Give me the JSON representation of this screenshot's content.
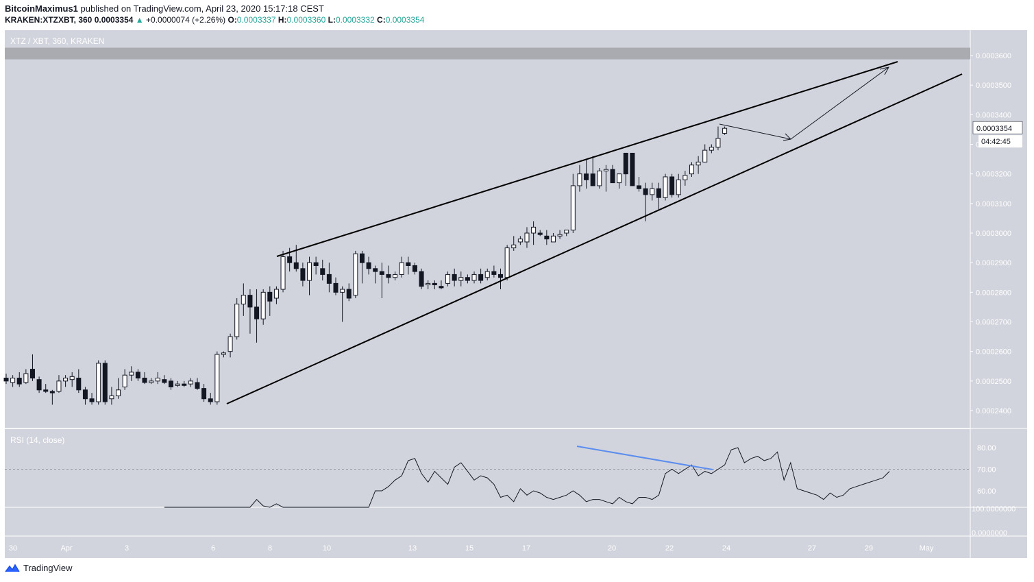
{
  "header": {
    "author": "BitcoinMaximus1",
    "published_text": "published on TradingView.com, April 23, 2020 15:17:18 CEST",
    "symbol": "KRAKEN:XTZXBT, 360",
    "last": "0.0003354",
    "change_arrow": "▲",
    "change": "+0.0000074 (+2.26%)",
    "o_label": "O:",
    "o": "0.0003337",
    "h_label": "H:",
    "h": "0.0003360",
    "l_label": "L:",
    "l": "0.0003332",
    "c_label": "C:",
    "c": "0.0003354"
  },
  "footer": {
    "brand": "TradingView",
    "logo_icon": "tradingview-logo-icon"
  },
  "colors": {
    "background": "#d1d4dc",
    "candle_up": "#ffffff",
    "candle_down": "#131722",
    "resistance_zone": "#a9abb0",
    "divergence": "#5b8def",
    "rsi_line": "#131722"
  },
  "chart_data": {
    "type": "candlestick",
    "title": "XTZ / XBT, 360, KRAKEN",
    "price_axis_ticks": [
      "0.0003600",
      "0.0003500",
      "0.0003400",
      "0.0003300",
      "0.0003200",
      "0.0003100",
      "0.0003000",
      "0.0002900",
      "0.0002800",
      "0.0002700",
      "0.0002600",
      "0.0002500",
      "0.0002400"
    ],
    "price_ticks_values": [
      0.00036,
      0.00035,
      0.00034,
      0.00033,
      0.00032,
      0.00031,
      0.0003,
      0.00029,
      0.00028,
      0.00027,
      0.00026,
      0.00025,
      0.00024
    ],
    "last_price_label": "0.0003354",
    "countdown_label": "04:42:45",
    "x_axis_labels": [
      "30",
      "Apr",
      "3",
      "6",
      "8",
      "10",
      "13",
      "15",
      "17",
      "20",
      "22",
      "24",
      "27",
      "29",
      "May"
    ],
    "candles_ohlc": [
      [
        0.000251,
        0.0002525,
        0.000249,
        0.00025
      ],
      [
        0.0002495,
        0.000252,
        0.000248,
        0.000251
      ],
      [
        0.000251,
        0.000253,
        0.000248,
        0.000249
      ],
      [
        0.0002495,
        0.000254,
        0.000249,
        0.0002525
      ],
      [
        0.000254,
        0.000259,
        0.00025,
        0.000251
      ],
      [
        0.0002505,
        0.0002515,
        0.000246,
        0.000247
      ],
      [
        0.000247,
        0.000249,
        0.000246,
        0.0002465
      ],
      [
        0.0002465,
        0.000247,
        0.000242,
        0.000246
      ],
      [
        0.0002465,
        0.000252,
        0.000246,
        0.00025
      ],
      [
        0.00025,
        0.000252,
        0.000248,
        0.000251
      ],
      [
        0.0002505,
        0.000253,
        0.000248,
        0.0002515
      ],
      [
        0.000251,
        0.000254,
        0.000246,
        0.000247
      ],
      [
        0.000247,
        0.000248,
        0.000242,
        0.000244
      ],
      [
        0.000244,
        0.000246,
        0.000242,
        0.000243
      ],
      [
        0.000243,
        0.000257,
        0.000242,
        0.000256
      ],
      [
        0.000256,
        0.000257,
        0.000242,
        0.000243
      ],
      [
        0.000244,
        0.000248,
        0.000242,
        0.000245
      ],
      [
        0.000245,
        0.000251,
        0.000244,
        0.000247
      ],
      [
        0.000248,
        0.000254,
        0.000247,
        0.000252
      ],
      [
        0.000252,
        0.000255,
        0.00025,
        0.000253
      ],
      [
        0.000253,
        0.000254,
        0.00025,
        0.000251
      ],
      [
        0.000251,
        0.000253,
        0.000249,
        0.0002495
      ],
      [
        0.0002495,
        0.000251,
        0.000249,
        0.00025
      ],
      [
        0.00025,
        0.000253,
        0.000249,
        0.000251
      ],
      [
        0.0002505,
        0.000252,
        0.000249,
        0.0002495
      ],
      [
        0.00025,
        0.000251,
        0.000247,
        0.000248
      ],
      [
        0.0002485,
        0.00025,
        0.000248,
        0.000249
      ],
      [
        0.000249,
        0.00025,
        0.000248,
        0.0002485
      ],
      [
        0.000249,
        0.000251,
        0.000248,
        0.00025
      ],
      [
        0.0002495,
        0.000251,
        0.000247,
        0.0002475
      ],
      [
        0.0002475,
        0.000249,
        0.000243,
        0.000244
      ],
      [
        0.000244,
        0.000246,
        0.000242,
        0.000243
      ],
      [
        0.000243,
        0.00026,
        0.000242,
        0.000259
      ],
      [
        0.000259,
        0.00026,
        0.000258,
        0.0002595
      ],
      [
        0.00026,
        0.000266,
        0.000258,
        0.000265
      ],
      [
        0.000265,
        0.000278,
        0.000264,
        0.000276
      ],
      [
        0.000276,
        0.000283,
        0.000272,
        0.000279
      ],
      [
        0.000279,
        0.000281,
        0.000266,
        0.000275
      ],
      [
        0.000275,
        0.000281,
        0.000263,
        0.000271
      ],
      [
        0.000271,
        0.000281,
        0.000269,
        0.00028
      ],
      [
        0.00028,
        0.000282,
        0.000272,
        0.000277
      ],
      [
        0.000278,
        0.000282,
        0.000276,
        0.000281
      ],
      [
        0.000281,
        0.000294,
        0.00028,
        0.000292
      ],
      [
        0.000292,
        0.000295,
        0.000287,
        0.00029
      ],
      [
        0.00029,
        0.000296,
        0.000287,
        0.000288
      ],
      [
        0.000288,
        0.00029,
        0.000282,
        0.000284
      ],
      [
        0.000284,
        0.000292,
        0.000279,
        0.00029
      ],
      [
        0.00029,
        0.000292,
        0.000286,
        0.000289
      ],
      [
        0.000288,
        0.000291,
        0.000284,
        0.000286
      ],
      [
        0.000286,
        0.00029,
        0.00028,
        0.000283
      ],
      [
        0.000283,
        0.000285,
        0.000279,
        0.00028
      ],
      [
        0.00028,
        0.000282,
        0.00027,
        0.000281
      ],
      [
        0.000281,
        0.000283,
        0.000277,
        0.000278
      ],
      [
        0.000279,
        0.000294,
        0.000278,
        0.000293
      ],
      [
        0.000293,
        0.000294,
        0.000283,
        0.00029
      ],
      [
        0.00029,
        0.000292,
        0.000286,
        0.000288
      ],
      [
        0.000288,
        0.000289,
        0.000283,
        0.000287
      ],
      [
        0.000287,
        0.00029,
        0.000278,
        0.000286
      ],
      [
        0.000286,
        0.000289,
        0.000283,
        0.000285
      ],
      [
        0.000285,
        0.000287,
        0.000284,
        0.000286
      ],
      [
        0.000286,
        0.000292,
        0.000285,
        0.00029
      ],
      [
        0.00029,
        0.000292,
        0.000286,
        0.000289
      ],
      [
        0.000289,
        0.00029,
        0.000286,
        0.000287
      ],
      [
        0.000287,
        0.000288,
        0.000281,
        0.000282
      ],
      [
        0.0002825,
        0.000284,
        0.000281,
        0.000283
      ],
      [
        0.000283,
        0.000284,
        0.000281,
        0.0002825
      ],
      [
        0.000282,
        0.000284,
        0.000281,
        0.0002815
      ],
      [
        0.000283,
        0.000287,
        0.000282,
        0.000286
      ],
      [
        0.000286,
        0.000288,
        0.000282,
        0.000284
      ],
      [
        0.000284,
        0.000287,
        0.000282,
        0.000285
      ],
      [
        0.000285,
        0.000286,
        0.000283,
        0.000284
      ],
      [
        0.000284,
        0.000287,
        0.000283,
        0.000286
      ],
      [
        0.000286,
        0.000288,
        0.000283,
        0.000284
      ],
      [
        0.000285,
        0.000288,
        0.000284,
        0.000287
      ],
      [
        0.000287,
        0.000289,
        0.000285,
        0.000286
      ],
      [
        0.000286,
        0.000288,
        0.000281,
        0.000285
      ],
      [
        0.000285,
        0.000296,
        0.000284,
        0.000295
      ],
      [
        0.000295,
        0.000299,
        0.000294,
        0.000296
      ],
      [
        0.000297,
        0.000299,
        0.000296,
        0.000298
      ],
      [
        0.000297,
        0.000302,
        0.000295,
        0.0003
      ],
      [
        0.0003,
        0.000304,
        0.000296,
        0.000302
      ],
      [
        0.0003,
        0.000301,
        0.000299,
        0.0002995
      ],
      [
        0.000299,
        0.000301,
        0.000296,
        0.000298
      ],
      [
        0.000297,
        0.0003,
        0.000297,
        0.000299
      ],
      [
        0.000299,
        0.000301,
        0.000298,
        0.0002995
      ],
      [
        0.0003,
        0.000301,
        0.000299,
        0.000301
      ],
      [
        0.000301,
        0.00032,
        0.0003,
        0.000316
      ],
      [
        0.000316,
        0.000323,
        0.000314,
        0.00032
      ],
      [
        0.00032,
        0.000325,
        0.000315,
        0.000318
      ],
      [
        0.00032,
        0.000326,
        0.000317,
        0.000316
      ],
      [
        0.000316,
        0.000322,
        0.000315,
        0.000321
      ],
      [
        0.000321,
        0.000323,
        0.000314,
        0.0003215
      ],
      [
        0.0003215,
        0.000323,
        0.000318,
        0.000317
      ],
      [
        0.000317,
        0.00032,
        0.000315,
        0.00032
      ],
      [
        0.000327,
        0.000327,
        0.000316,
        0.00032
      ],
      [
        0.000327,
        0.000327,
        0.000316,
        0.000316
      ],
      [
        0.000316,
        0.000319,
        0.000314,
        0.000315
      ],
      [
        0.000315,
        0.000317,
        0.000304,
        0.000313
      ],
      [
        0.000313,
        0.000317,
        0.000311,
        0.000315
      ],
      [
        0.000315,
        0.000317,
        0.000308,
        0.000312
      ],
      [
        0.000312,
        0.00032,
        0.000311,
        0.000319
      ],
      [
        0.000319,
        0.00032,
        0.000312,
        0.000313
      ],
      [
        0.000313,
        0.00032,
        0.000312,
        0.000318
      ],
      [
        0.000318,
        0.000321,
        0.000316,
        0.0003195
      ],
      [
        0.00032,
        0.000324,
        0.000319,
        0.000323
      ],
      [
        0.000323,
        0.000326,
        0.00032,
        0.000324
      ],
      [
        0.000324,
        0.00033,
        0.000324,
        0.000328
      ],
      [
        0.000328,
        0.00033,
        0.000327,
        0.000329
      ],
      [
        0.000329,
        0.000336,
        0.000328,
        0.000332
      ],
      [
        0.0003337,
        0.000336,
        0.0003332,
        0.0003354
      ]
    ],
    "drawings": {
      "upper_trendline": [
        [
          "Apr 8",
          0.000292
        ],
        [
          "Apr 30",
          0.000358
        ]
      ],
      "lower_trendline": [
        [
          "Apr 6",
          0.000242
        ],
        [
          "May 1",
          0.000353
        ]
      ],
      "resistance_zone": [
        0.0003537,
        0.0003557
      ],
      "projection_arrows": "down to lower trendline, then up to resistance"
    },
    "rsi": {
      "label": "RSI (14, close)",
      "axis_ticks": [
        "80.00",
        "70.00",
        "60.00"
      ],
      "axis_tick_values": [
        80,
        70,
        60
      ],
      "overbought_level": 70,
      "lower_axis_labels": [
        "100.0000000",
        "0.0000000"
      ],
      "values": [
        50,
        44,
        40,
        46,
        48,
        42,
        47,
        41,
        44,
        46,
        45,
        47,
        48,
        49,
        56,
        53,
        50,
        54,
        52,
        50,
        48,
        50,
        49,
        50,
        47,
        49,
        50,
        48,
        48,
        46,
        44,
        43,
        60,
        60,
        62,
        65,
        67,
        74,
        75,
        68,
        64,
        69,
        66,
        63,
        71,
        73,
        69,
        65,
        67,
        66,
        63,
        57,
        58,
        55,
        61,
        58,
        60,
        59,
        57,
        56,
        57,
        58,
        60,
        58,
        55,
        56,
        56,
        55,
        54,
        57,
        55,
        54,
        57,
        57,
        56,
        58,
        68,
        70,
        68,
        70,
        72,
        67,
        69,
        68,
        70,
        72,
        79,
        80,
        73,
        75,
        76,
        74,
        75,
        78,
        65,
        73,
        61,
        60,
        59,
        58,
        56,
        59,
        57,
        58,
        61,
        62,
        63,
        64,
        65,
        66,
        69
      ]
    },
    "divergence_line": [
      [
        "Apr 18",
        80.2
      ],
      [
        "Apr 23",
        69.5
      ]
    ]
  }
}
